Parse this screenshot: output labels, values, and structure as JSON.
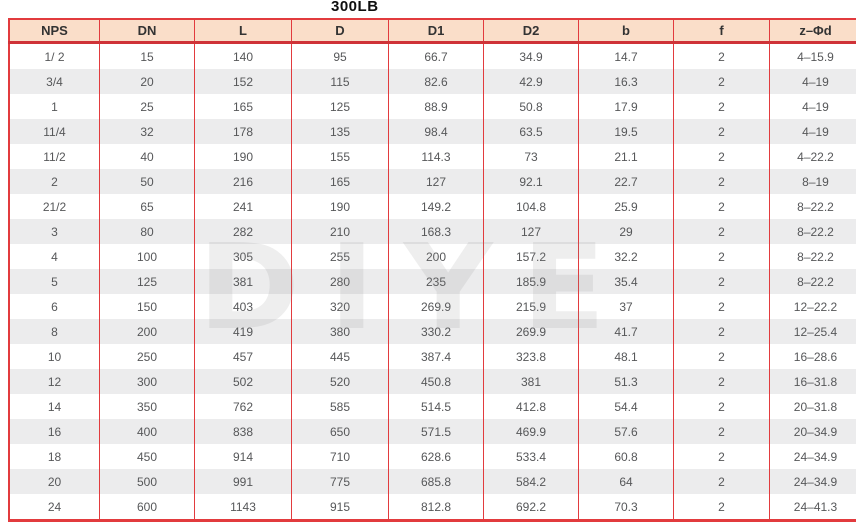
{
  "page": {
    "title": "300LB"
  },
  "watermark": {
    "text": "DIYE"
  },
  "colors": {
    "border_red": "#e23b3e",
    "header_separator_red": "#cf3338",
    "header_bg": "#fadec9",
    "row_stripe": "#ececed",
    "body_text": "#565759",
    "header_text": "#333333"
  },
  "table": {
    "columns": [
      "NPS",
      "DN",
      "L",
      "D",
      "D1",
      "D2",
      "b",
      "f",
      "z–Φd"
    ],
    "rows": [
      [
        "1/ 2",
        "15",
        "140",
        "95",
        "66.7",
        "34.9",
        "14.7",
        "2",
        "4–15.9"
      ],
      [
        "3/4",
        "20",
        "152",
        "115",
        "82.6",
        "42.9",
        "16.3",
        "2",
        "4–19"
      ],
      [
        "1",
        "25",
        "165",
        "125",
        "88.9",
        "50.8",
        "17.9",
        "2",
        "4–19"
      ],
      [
        "11/4",
        "32",
        "178",
        "135",
        "98.4",
        "63.5",
        "19.5",
        "2",
        "4–19"
      ],
      [
        "11/2",
        "40",
        "190",
        "155",
        "114.3",
        "73",
        "21.1",
        "2",
        "4–22.2"
      ],
      [
        "2",
        "50",
        "216",
        "165",
        "127",
        "92.1",
        "22.7",
        "2",
        "8–19"
      ],
      [
        "21/2",
        "65",
        "241",
        "190",
        "149.2",
        "104.8",
        "25.9",
        "2",
        "8–22.2"
      ],
      [
        "3",
        "80",
        "282",
        "210",
        "168.3",
        "127",
        "29",
        "2",
        "8–22.2"
      ],
      [
        "4",
        "100",
        "305",
        "255",
        "200",
        "157.2",
        "32.2",
        "2",
        "8–22.2"
      ],
      [
        "5",
        "125",
        "381",
        "280",
        "235",
        "185.9",
        "35.4",
        "2",
        "8–22.2"
      ],
      [
        "6",
        "150",
        "403",
        "320",
        "269.9",
        "215.9",
        "37",
        "2",
        "12–22.2"
      ],
      [
        "8",
        "200",
        "419",
        "380",
        "330.2",
        "269.9",
        "41.7",
        "2",
        "12–25.4"
      ],
      [
        "10",
        "250",
        "457",
        "445",
        "387.4",
        "323.8",
        "48.1",
        "2",
        "16–28.6"
      ],
      [
        "12",
        "300",
        "502",
        "520",
        "450.8",
        "381",
        "51.3",
        "2",
        "16–31.8"
      ],
      [
        "14",
        "350",
        "762",
        "585",
        "514.5",
        "412.8",
        "54.4",
        "2",
        "20–31.8"
      ],
      [
        "16",
        "400",
        "838",
        "650",
        "571.5",
        "469.9",
        "57.6",
        "2",
        "20–34.9"
      ],
      [
        "18",
        "450",
        "914",
        "710",
        "628.6",
        "533.4",
        "60.8",
        "2",
        "24–34.9"
      ],
      [
        "20",
        "500",
        "991",
        "775",
        "685.8",
        "584.2",
        "64",
        "2",
        "24–34.9"
      ],
      [
        "24",
        "600",
        "1143",
        "915",
        "812.8",
        "692.2",
        "70.3",
        "2",
        "24–41.3"
      ]
    ]
  }
}
